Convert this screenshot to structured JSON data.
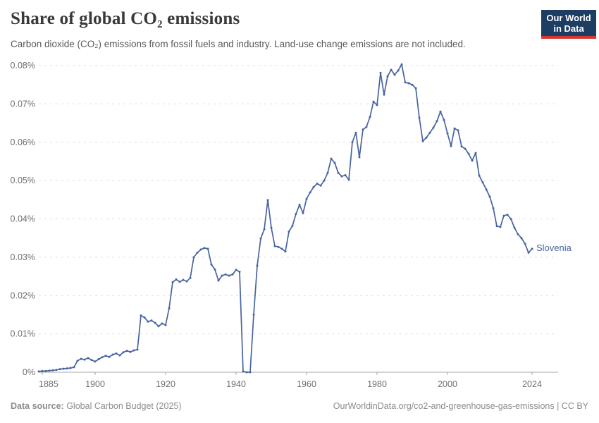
{
  "header": {
    "title": "Share of global CO₂ emissions",
    "subtitle": "Carbon dioxide (CO₂) emissions from fossil fuels and industry. Land-use change emissions are not included."
  },
  "logo": {
    "line1": "Our World",
    "line2": "in Data",
    "bg_color": "#1d3d63",
    "accent_color": "#d7382e"
  },
  "footer": {
    "source_label": "Data source:",
    "source_text": " Global Carbon Budget (2025)",
    "attribution": "OurWorldinData.org/co2-and-greenhouse-gas-emissions | CC BY"
  },
  "chart_data": {
    "type": "line",
    "title": "Share of global CO₂ emissions",
    "xlabel": "",
    "ylabel": "",
    "xlim": [
      1884,
      2024
    ],
    "ylim": [
      0,
      0.08
    ],
    "grid": "horizontal-dashed",
    "legend_position": "end-of-line-label",
    "x_ticks": [
      {
        "value": 1885,
        "label": "1885"
      },
      {
        "value": 1900,
        "label": "1900"
      },
      {
        "value": 1920,
        "label": "1920"
      },
      {
        "value": 1940,
        "label": "1940"
      },
      {
        "value": 1960,
        "label": "1960"
      },
      {
        "value": 1980,
        "label": "1980"
      },
      {
        "value": 2000,
        "label": "2000"
      },
      {
        "value": 2024,
        "label": "2024"
      }
    ],
    "y_ticks": [
      {
        "value": 0.0,
        "label": "0%"
      },
      {
        "value": 0.01,
        "label": "0.01%"
      },
      {
        "value": 0.02,
        "label": "0.02%"
      },
      {
        "value": 0.03,
        "label": "0.03%"
      },
      {
        "value": 0.04,
        "label": "0.04%"
      },
      {
        "value": 0.05,
        "label": "0.05%"
      },
      {
        "value": 0.06,
        "label": "0.06%"
      },
      {
        "value": 0.07,
        "label": "0.07%"
      },
      {
        "value": 0.08,
        "label": "0.08%"
      }
    ],
    "series": [
      {
        "name": "Slovenia",
        "color": "#4864a0",
        "unit": "%",
        "years": [
          1884,
          1885,
          1886,
          1887,
          1888,
          1889,
          1890,
          1891,
          1892,
          1893,
          1894,
          1895,
          1896,
          1897,
          1898,
          1899,
          1900,
          1901,
          1902,
          1903,
          1904,
          1905,
          1906,
          1907,
          1908,
          1909,
          1910,
          1911,
          1912,
          1913,
          1914,
          1915,
          1916,
          1917,
          1918,
          1919,
          1920,
          1921,
          1922,
          1923,
          1924,
          1925,
          1926,
          1927,
          1928,
          1929,
          1930,
          1931,
          1932,
          1933,
          1934,
          1935,
          1936,
          1937,
          1938,
          1939,
          1940,
          1941,
          1942,
          1943,
          1944,
          1945,
          1946,
          1947,
          1948,
          1949,
          1950,
          1951,
          1952,
          1953,
          1954,
          1955,
          1956,
          1957,
          1958,
          1959,
          1960,
          1961,
          1962,
          1963,
          1964,
          1965,
          1966,
          1967,
          1968,
          1969,
          1970,
          1971,
          1972,
          1973,
          1974,
          1975,
          1976,
          1977,
          1978,
          1979,
          1980,
          1981,
          1982,
          1983,
          1984,
          1985,
          1986,
          1987,
          1988,
          1989,
          1990,
          1991,
          1992,
          1993,
          1994,
          1995,
          1996,
          1997,
          1998,
          1999,
          2000,
          2001,
          2002,
          2003,
          2004,
          2005,
          2006,
          2007,
          2008,
          2009,
          2010,
          2011,
          2012,
          2013,
          2014,
          2015,
          2016,
          2017,
          2018,
          2019,
          2020,
          2021,
          2022,
          2023,
          2024
        ],
        "values": [
          0.0002,
          0.0003,
          0.0003,
          0.0004,
          0.0005,
          0.0006,
          0.0008,
          0.0009,
          0.001,
          0.0011,
          0.0013,
          0.003,
          0.0035,
          0.0033,
          0.0037,
          0.0032,
          0.0028,
          0.0034,
          0.0039,
          0.0043,
          0.004,
          0.0046,
          0.0049,
          0.0044,
          0.0052,
          0.0056,
          0.0053,
          0.0057,
          0.0059,
          0.0148,
          0.0143,
          0.0132,
          0.0135,
          0.0129,
          0.012,
          0.0127,
          0.0123,
          0.0167,
          0.0235,
          0.0242,
          0.0236,
          0.0241,
          0.0237,
          0.0246,
          0.03,
          0.0312,
          0.032,
          0.0324,
          0.0322,
          0.0281,
          0.0268,
          0.0239,
          0.0252,
          0.0255,
          0.0252,
          0.0255,
          0.0267,
          0.0262,
          0.0002,
          0.0,
          0.0,
          0.015,
          0.0278,
          0.0349,
          0.0373,
          0.0449,
          0.0377,
          0.0329,
          0.0327,
          0.0322,
          0.0315,
          0.0367,
          0.0382,
          0.0413,
          0.0437,
          0.0415,
          0.0452,
          0.0469,
          0.0483,
          0.0492,
          0.0487,
          0.05,
          0.052,
          0.0557,
          0.0546,
          0.052,
          0.0511,
          0.0514,
          0.0502,
          0.06,
          0.0625,
          0.0561,
          0.0633,
          0.064,
          0.0666,
          0.0706,
          0.0697,
          0.0781,
          0.0724,
          0.0772,
          0.0789,
          0.0776,
          0.0787,
          0.0803,
          0.0756,
          0.0754,
          0.075,
          0.0741,
          0.0664,
          0.0603,
          0.0612,
          0.0625,
          0.0638,
          0.0655,
          0.068,
          0.0658,
          0.0623,
          0.059,
          0.0636,
          0.0631,
          0.0589,
          0.0583,
          0.057,
          0.0552,
          0.0572,
          0.0513,
          0.0495,
          0.0477,
          0.0458,
          0.0428,
          0.0381,
          0.0379,
          0.0408,
          0.0411,
          0.04,
          0.0377,
          0.036,
          0.035,
          0.0335,
          0.0312,
          0.0322
        ]
      }
    ],
    "colors": {
      "gridline": "#dedede",
      "axis_line": "#a7a7a7",
      "tick_label": "#6f6f6f"
    }
  }
}
